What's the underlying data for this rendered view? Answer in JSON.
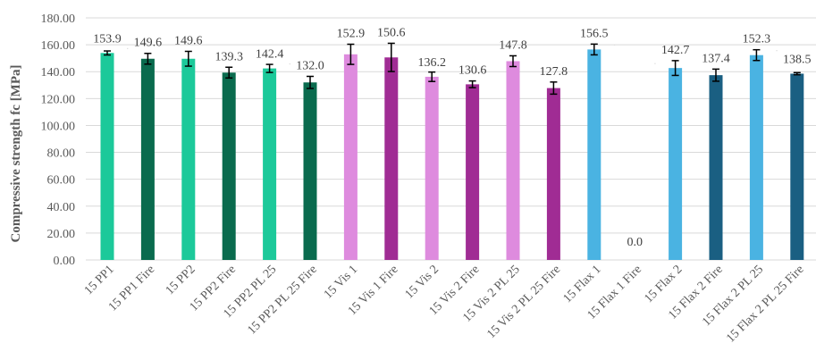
{
  "chart_data": {
    "type": "bar",
    "title": "",
    "xlabel": "",
    "ylabel": "Compressive strength fc [MPa]",
    "ylim": [
      0,
      180
    ],
    "y_ticks": [
      "0.00",
      "20.00",
      "40.00",
      "60.00",
      "80.00",
      "100.00",
      "120.00",
      "140.00",
      "160.00",
      "180.00"
    ],
    "grid": true,
    "legend": "none",
    "categories": [
      "15 PP1",
      "15 PP1 Fire",
      "15 PP2",
      "15 PP2 Fire",
      "15 PP2 PL 25",
      "15 PP2 PL 25 Fire",
      "15 Vis 1",
      "15 Vis 1 Fire",
      "15 Vis 2",
      "15 Vis 2 Fire",
      "15 Vis 2 PL 25",
      "15 Vis 2 PL 25 Fire",
      "15 Flax 1",
      "15 Flax 1 Fire",
      "15 Flax 2",
      "15 Flax 2 Fire",
      "15 Flax 2 PL 25",
      "15 Flax 2 PL 25 Fire"
    ],
    "values": [
      153.9,
      149.6,
      149.6,
      139.3,
      142.4,
      132.0,
      152.9,
      150.6,
      136.2,
      130.6,
      147.8,
      127.8,
      156.5,
      0.0,
      142.7,
      137.4,
      152.3,
      138.5
    ],
    "labels": [
      "153.9",
      "149.6",
      "149.6",
      "139.3",
      "142.4",
      "132.0",
      "152.9",
      "150.6",
      "136.2",
      "130.6",
      "147.8",
      "127.8",
      "156.5",
      "0.0",
      "142.7",
      "137.4",
      "152.3",
      "138.5"
    ],
    "errors": [
      1.5,
      4.0,
      5.5,
      4.0,
      3.0,
      4.5,
      7.5,
      10.5,
      3.5,
      2.5,
      4.0,
      4.5,
      4.0,
      0,
      5.5,
      4.5,
      4.0,
      0.8
    ],
    "colors": [
      "#1cc99a",
      "#0a6b4e",
      "#1cc99a",
      "#0a6b4e",
      "#1cc99a",
      "#0a6b4e",
      "#de8bde",
      "#a02c94",
      "#de8bde",
      "#a02c94",
      "#de8bde",
      "#a02c94",
      "#4ab3e2",
      "#1a5f82",
      "#4ab3e2",
      "#1a5f82",
      "#4ab3e2",
      "#1a5f82"
    ]
  }
}
